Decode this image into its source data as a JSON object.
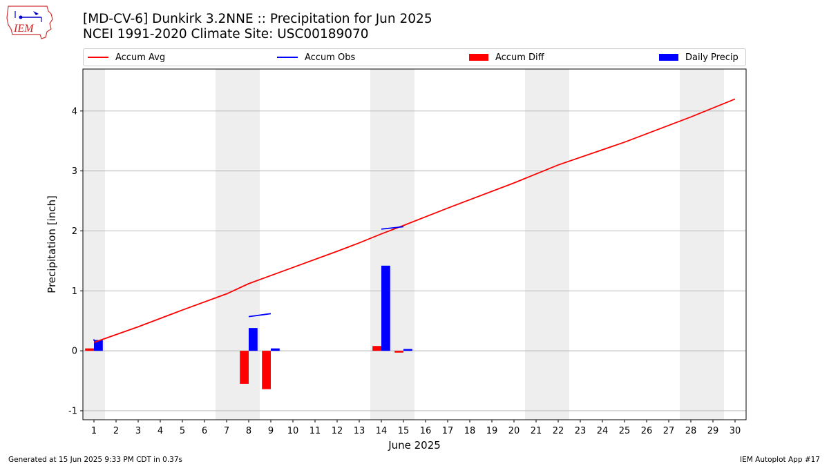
{
  "title_line1": "[MD-CV-6] Dunkirk 3.2NNE :: Precipitation for Jun 2025",
  "title_line2": "NCEI 1991-2020 Climate Site: USC00189070",
  "logo_text": "IEM",
  "footer_left": "Generated at 15 Jun 2025 9:33 PM CDT in 0.37s",
  "footer_right": "IEM Autoplot App #17",
  "colors": {
    "accum_avg": "#ff0000",
    "accum_obs": "#0000ff",
    "accum_diff": "#ff0000",
    "daily_precip": "#0000ff",
    "weekend_band": "#eeeeee",
    "grid": "#b0b0b0"
  },
  "chart_data": {
    "type": "bar",
    "xlabel": "June 2025",
    "ylabel": "Precipitation [inch]",
    "xlim": [
      0.5,
      30.5
    ],
    "ylim": [
      -1.15,
      4.7
    ],
    "x_ticks": [
      1,
      2,
      3,
      4,
      5,
      6,
      7,
      8,
      9,
      10,
      11,
      12,
      13,
      14,
      15,
      16,
      17,
      18,
      19,
      20,
      21,
      22,
      23,
      24,
      25,
      26,
      27,
      28,
      29,
      30
    ],
    "y_ticks": [
      -1,
      0,
      1,
      2,
      3,
      4
    ],
    "grid": "horizontal",
    "legend": [
      "Accum Avg",
      "Accum Obs",
      "Accum Diff",
      "Daily Precip"
    ],
    "legend_placement": "top",
    "weekend_days": [
      1,
      7,
      8,
      14,
      15,
      21,
      22,
      28,
      29
    ],
    "accum_avg": {
      "x": [
        1,
        3,
        5,
        7,
        8,
        10,
        12,
        13,
        14,
        15,
        17,
        20,
        22,
        25,
        28,
        30
      ],
      "y": [
        0.14,
        0.4,
        0.68,
        0.95,
        1.12,
        1.39,
        1.66,
        1.8,
        1.95,
        2.09,
        2.38,
        2.8,
        3.1,
        3.48,
        3.9,
        4.2
      ]
    },
    "accum_obs": {
      "segments": [
        {
          "x": [
            1,
            1
          ],
          "y": [
            0.18,
            0.18
          ]
        },
        {
          "x": [
            8,
            9
          ],
          "y": [
            0.57,
            0.62
          ]
        },
        {
          "x": [
            14,
            15
          ],
          "y": [
            2.03,
            2.07
          ]
        }
      ]
    },
    "accum_diff": {
      "x": [
        1,
        8,
        9,
        14,
        15
      ],
      "y": [
        0.04,
        -0.55,
        -0.64,
        0.08,
        -0.03
      ]
    },
    "daily_precip": {
      "x": [
        1,
        8,
        9,
        14,
        15
      ],
      "y": [
        0.18,
        0.38,
        0.04,
        1.42,
        0.03
      ]
    }
  }
}
